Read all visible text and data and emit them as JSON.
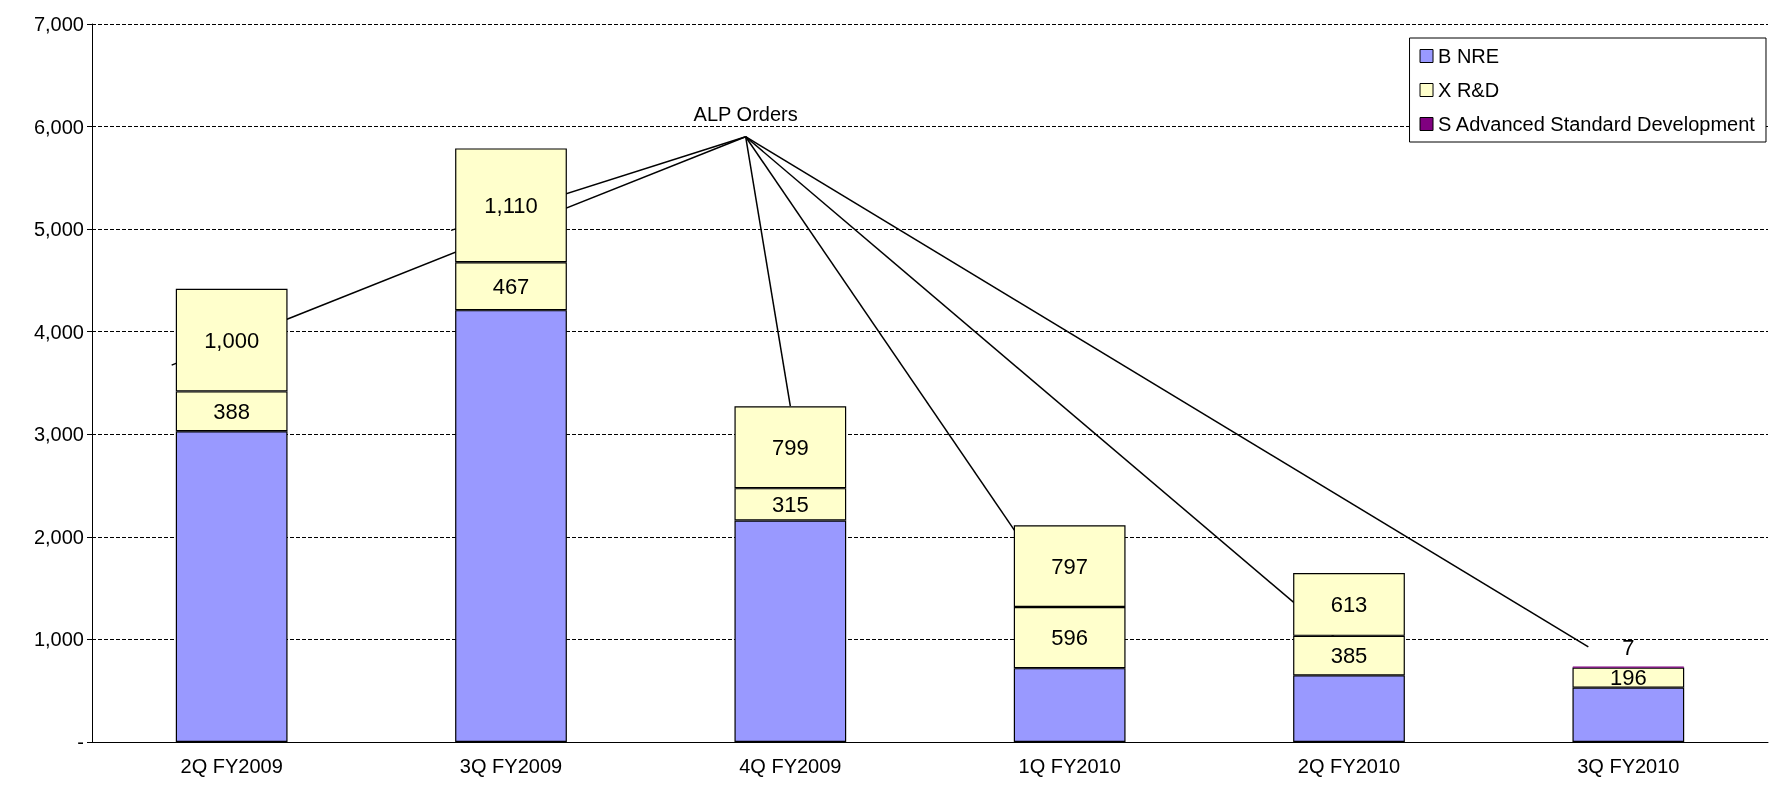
{
  "chart_data": {
    "type": "bar",
    "stacked": true,
    "categories": [
      "2Q FY2009",
      "3Q FY2009",
      "4Q FY2009",
      "1Q FY2010",
      "2Q FY2010",
      "3Q FY2010"
    ],
    "series": [
      {
        "name": "B NRE",
        "color": "#9999ff",
        "values": [
          3030,
          4210,
          2160,
          720,
          650,
          530
        ]
      },
      {
        "name": "X R&D",
        "color": "#ffffcc",
        "values": [
          388,
          467,
          315,
          596,
          385,
          196
        ],
        "value_labels": [
          "388",
          "467",
          "315",
          "596",
          "385",
          "196"
        ]
      },
      {
        "color": "#ffffcc",
        "values": [
          1000,
          1110,
          799,
          797,
          613,
          null
        ],
        "value_labels": [
          "1,000",
          "1,110",
          "799",
          "797",
          "613",
          null
        ]
      },
      {
        "name": "S Advanced Standard Development",
        "color": "#800080",
        "values": [
          null,
          null,
          null,
          null,
          null,
          7
        ],
        "value_labels": [
          null,
          null,
          null,
          null,
          null,
          "7"
        ]
      }
    ],
    "annotations": [
      {
        "text": "ALP Orders",
        "x": "4Q FY2009",
        "y": 3274
      }
    ],
    "ylim": [
      0,
      7000
    ],
    "yticks": [
      {
        "value": 0,
        "label": "-"
      },
      {
        "value": 1000,
        "label": "1,000"
      },
      {
        "value": 2000,
        "label": "2,000"
      },
      {
        "value": 3000,
        "label": "3,000"
      },
      {
        "value": 4000,
        "label": "4,000"
      },
      {
        "value": 5000,
        "label": "5,000"
      },
      {
        "value": 6000,
        "label": "6,000"
      },
      {
        "value": 7000,
        "label": "7,000"
      }
    ],
    "grid": "y",
    "legend": "top right"
  }
}
